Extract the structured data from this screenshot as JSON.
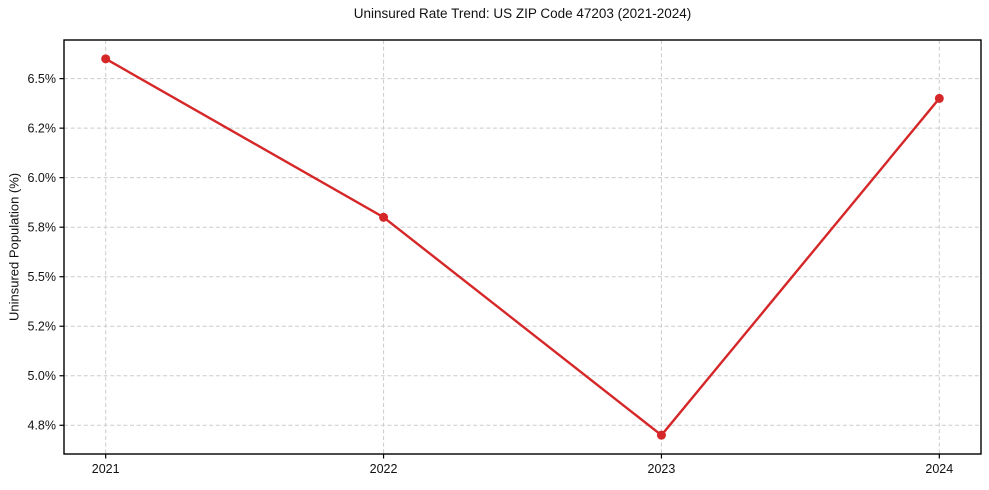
{
  "chart_data": {
    "type": "line",
    "title": "Uninsured Rate Trend: US ZIP Code 47203 (2021-2024)",
    "xlabel": "",
    "ylabel": "Uninsured Population (%)",
    "x": [
      2021,
      2022,
      2023,
      2024
    ],
    "values": [
      6.6,
      5.8,
      4.7,
      6.4
    ],
    "xlim": [
      2020.85,
      2024.15
    ],
    "ylim": [
      4.605,
      6.695
    ],
    "xticks": [
      {
        "value": 2021,
        "label": "2021"
      },
      {
        "value": 2022,
        "label": "2022"
      },
      {
        "value": 2023,
        "label": "2023"
      },
      {
        "value": 2024,
        "label": "2024"
      }
    ],
    "yticks": [
      {
        "value": 4.75,
        "label": "4.8%"
      },
      {
        "value": 5.0,
        "label": "5.0%"
      },
      {
        "value": 5.25,
        "label": "5.2%"
      },
      {
        "value": 5.5,
        "label": "5.5%"
      },
      {
        "value": 5.75,
        "label": "5.8%"
      },
      {
        "value": 6.0,
        "label": "6.0%"
      },
      {
        "value": 6.25,
        "label": "6.2%"
      },
      {
        "value": 6.5,
        "label": "6.5%"
      }
    ],
    "grid": true,
    "grid_style": "dashed",
    "legend": "none",
    "line_color": "#d62728",
    "marker": "circle",
    "marker_color": "#d62728"
  }
}
